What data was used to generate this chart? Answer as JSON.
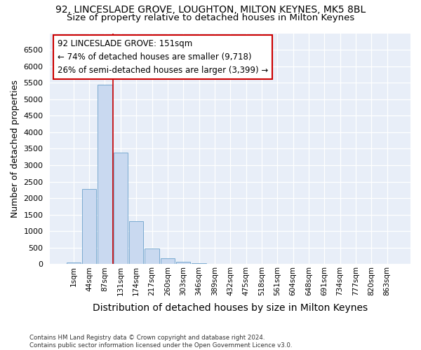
{
  "title_line1": "92, LINCESLADE GROVE, LOUGHTON, MILTON KEYNES, MK5 8BL",
  "title_line2": "Size of property relative to detached houses in Milton Keynes",
  "xlabel": "Distribution of detached houses by size in Milton Keynes",
  "ylabel": "Number of detached properties",
  "footnote": "Contains HM Land Registry data © Crown copyright and database right 2024.\nContains public sector information licensed under the Open Government Licence v3.0.",
  "categories": [
    "1sqm",
    "44sqm",
    "87sqm",
    "131sqm",
    "174sqm",
    "217sqm",
    "260sqm",
    "303sqm",
    "346sqm",
    "389sqm",
    "432sqm",
    "475sqm",
    "518sqm",
    "561sqm",
    "604sqm",
    "648sqm",
    "691sqm",
    "734sqm",
    "777sqm",
    "820sqm",
    "863sqm"
  ],
  "values": [
    55,
    2280,
    5450,
    3380,
    1300,
    475,
    175,
    80,
    40,
    10,
    4,
    4,
    2,
    1,
    0,
    0,
    0,
    0,
    0,
    0,
    0
  ],
  "bar_color": "#c9d9f0",
  "bar_edge_color": "#7aaad0",
  "vline_color": "#cc0000",
  "vline_x_index": 2.5,
  "annotation_text": "92 LINCESLADE GROVE: 151sqm\n← 74% of detached houses are smaller (9,718)\n26% of semi-detached houses are larger (3,399) →",
  "annotation_box_color": "white",
  "annotation_box_edge_color": "#cc0000",
  "ylim_max": 7000,
  "yticks": [
    0,
    500,
    1000,
    1500,
    2000,
    2500,
    3000,
    3500,
    4000,
    4500,
    5000,
    5500,
    6000,
    6500
  ],
  "background_color": "#e8eef8",
  "title1_fontsize": 10,
  "title2_fontsize": 9.5,
  "xlabel_fontsize": 10,
  "ylabel_fontsize": 9,
  "tick_fontsize": 8,
  "annot_fontsize": 8.5
}
